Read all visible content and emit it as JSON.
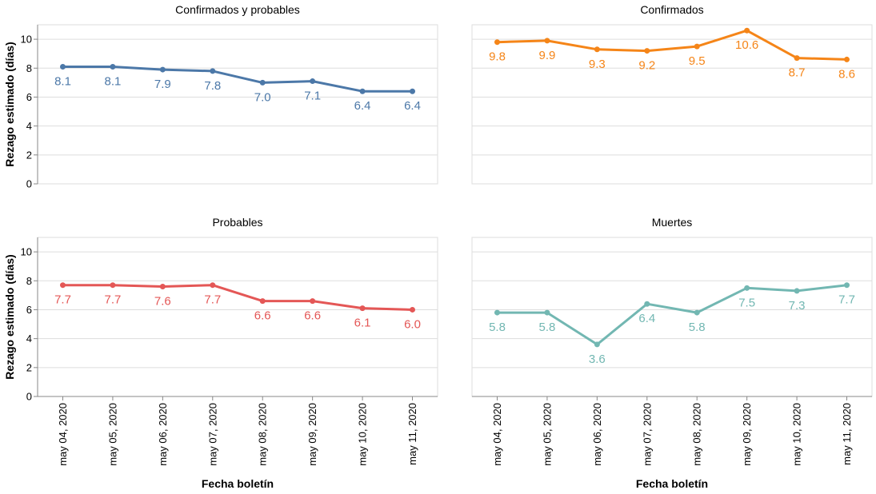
{
  "chart_data": {
    "type": "line",
    "y_axis_title": "Rezago estimado (días)",
    "x_axis_title": "Fecha boletín",
    "x": [
      "may 04, 2020",
      "may 05, 2020",
      "may 06, 2020",
      "may 07, 2020",
      "may 08, 2020",
      "may 09, 2020",
      "may 10, 2020",
      "may 11, 2020"
    ],
    "y_ticks": [
      0,
      2,
      4,
      6,
      8,
      10
    ],
    "ylim": [
      0,
      11
    ],
    "grid": true,
    "panels": [
      {
        "title": "Confirmados y probables",
        "color": "#4c78a8",
        "values": [
          8.1,
          8.1,
          7.9,
          7.8,
          7.0,
          7.1,
          6.4,
          6.4
        ],
        "labels": [
          "8.1",
          "8.1",
          "7.9",
          "7.8",
          "7.0",
          "7.1",
          "6.4",
          "6.4"
        ]
      },
      {
        "title": "Confirmados",
        "color": "#f58518",
        "values": [
          9.8,
          9.9,
          9.3,
          9.2,
          9.5,
          10.6,
          8.7,
          8.6
        ],
        "labels": [
          "9.8",
          "9.9",
          "9.3",
          "9.2",
          "9.5",
          "10.6",
          "8.7",
          "8.6"
        ]
      },
      {
        "title": "Probables",
        "color": "#e45756",
        "values": [
          7.7,
          7.7,
          7.6,
          7.7,
          6.6,
          6.6,
          6.1,
          6.0
        ],
        "labels": [
          "7.7",
          "7.7",
          "7.6",
          "7.7",
          "6.6",
          "6.6",
          "6.1",
          "6.0"
        ]
      },
      {
        "title": "Muertes",
        "color": "#72b7b2",
        "values": [
          5.8,
          5.8,
          3.6,
          6.4,
          5.8,
          7.5,
          7.3,
          7.7
        ],
        "labels": [
          "5.8",
          "5.8",
          "3.6",
          "6.4",
          "5.8",
          "7.5",
          "7.3",
          "7.7"
        ]
      }
    ]
  }
}
